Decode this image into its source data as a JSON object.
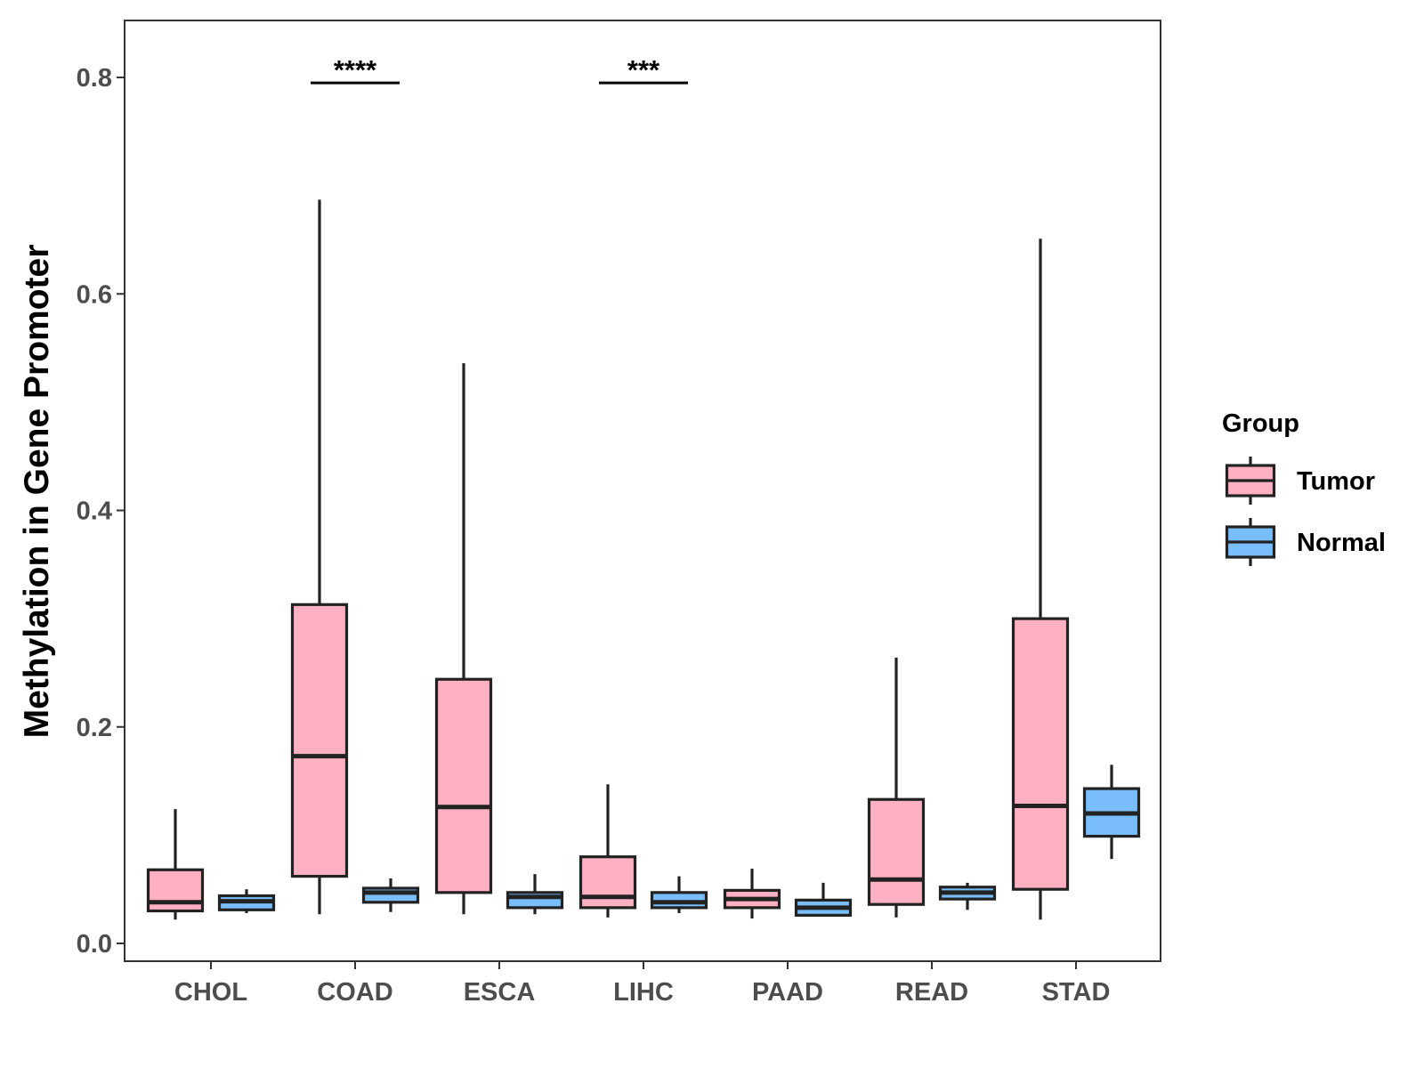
{
  "chart_data": {
    "type": "boxplot",
    "title": "",
    "xlabel": "",
    "ylabel": "Methylation in Gene Promoter",
    "ylim": [
      -0.02,
      0.85
    ],
    "yticks": [
      0.0,
      0.2,
      0.4,
      0.6,
      0.8
    ],
    "ytick_labels": [
      "0.0",
      "0.2",
      "0.4",
      "0.6",
      "0.8"
    ],
    "grid": false,
    "categories": [
      "CHOL",
      "COAD",
      "ESCA",
      "LIHC",
      "PAAD",
      "READ",
      "STAD"
    ],
    "legend": {
      "title": "Group",
      "position": "right"
    },
    "series": [
      {
        "name": "Tumor",
        "color": "#FFB1C3",
        "boxes": [
          {
            "whisker_low": 0.022,
            "q1": 0.03,
            "median": 0.038,
            "q3": 0.068,
            "whisker_high": 0.124
          },
          {
            "whisker_low": 0.027,
            "q1": 0.062,
            "median": 0.173,
            "q3": 0.313,
            "whisker_high": 0.687
          },
          {
            "whisker_low": 0.027,
            "q1": 0.047,
            "median": 0.126,
            "q3": 0.244,
            "whisker_high": 0.536
          },
          {
            "whisker_low": 0.024,
            "q1": 0.033,
            "median": 0.043,
            "q3": 0.08,
            "whisker_high": 0.147
          },
          {
            "whisker_low": 0.023,
            "q1": 0.033,
            "median": 0.041,
            "q3": 0.049,
            "whisker_high": 0.069
          },
          {
            "whisker_low": 0.024,
            "q1": 0.036,
            "median": 0.059,
            "q3": 0.133,
            "whisker_high": 0.264
          },
          {
            "whisker_low": 0.022,
            "q1": 0.05,
            "median": 0.127,
            "q3": 0.3,
            "whisker_high": 0.651
          }
        ]
      },
      {
        "name": "Normal",
        "color": "#79BEFA",
        "boxes": [
          {
            "whisker_low": 0.028,
            "q1": 0.031,
            "median": 0.039,
            "q3": 0.044,
            "whisker_high": 0.05
          },
          {
            "whisker_low": 0.029,
            "q1": 0.038,
            "median": 0.047,
            "q3": 0.051,
            "whisker_high": 0.06
          },
          {
            "whisker_low": 0.027,
            "q1": 0.033,
            "median": 0.043,
            "q3": 0.047,
            "whisker_high": 0.064
          },
          {
            "whisker_low": 0.028,
            "q1": 0.033,
            "median": 0.038,
            "q3": 0.047,
            "whisker_high": 0.062
          },
          {
            "whisker_low": 0.026,
            "q1": 0.026,
            "median": 0.033,
            "q3": 0.04,
            "whisker_high": 0.056
          },
          {
            "whisker_low": 0.031,
            "q1": 0.041,
            "median": 0.047,
            "q3": 0.052,
            "whisker_high": 0.056
          },
          {
            "whisker_low": 0.078,
            "q1": 0.099,
            "median": 0.12,
            "q3": 0.143,
            "whisker_high": 0.165
          }
        ]
      }
    ],
    "annotations": [
      {
        "category": "COAD",
        "label": "****",
        "y": 0.795
      },
      {
        "category": "LIHC",
        "label": "***",
        "y": 0.795
      }
    ]
  }
}
